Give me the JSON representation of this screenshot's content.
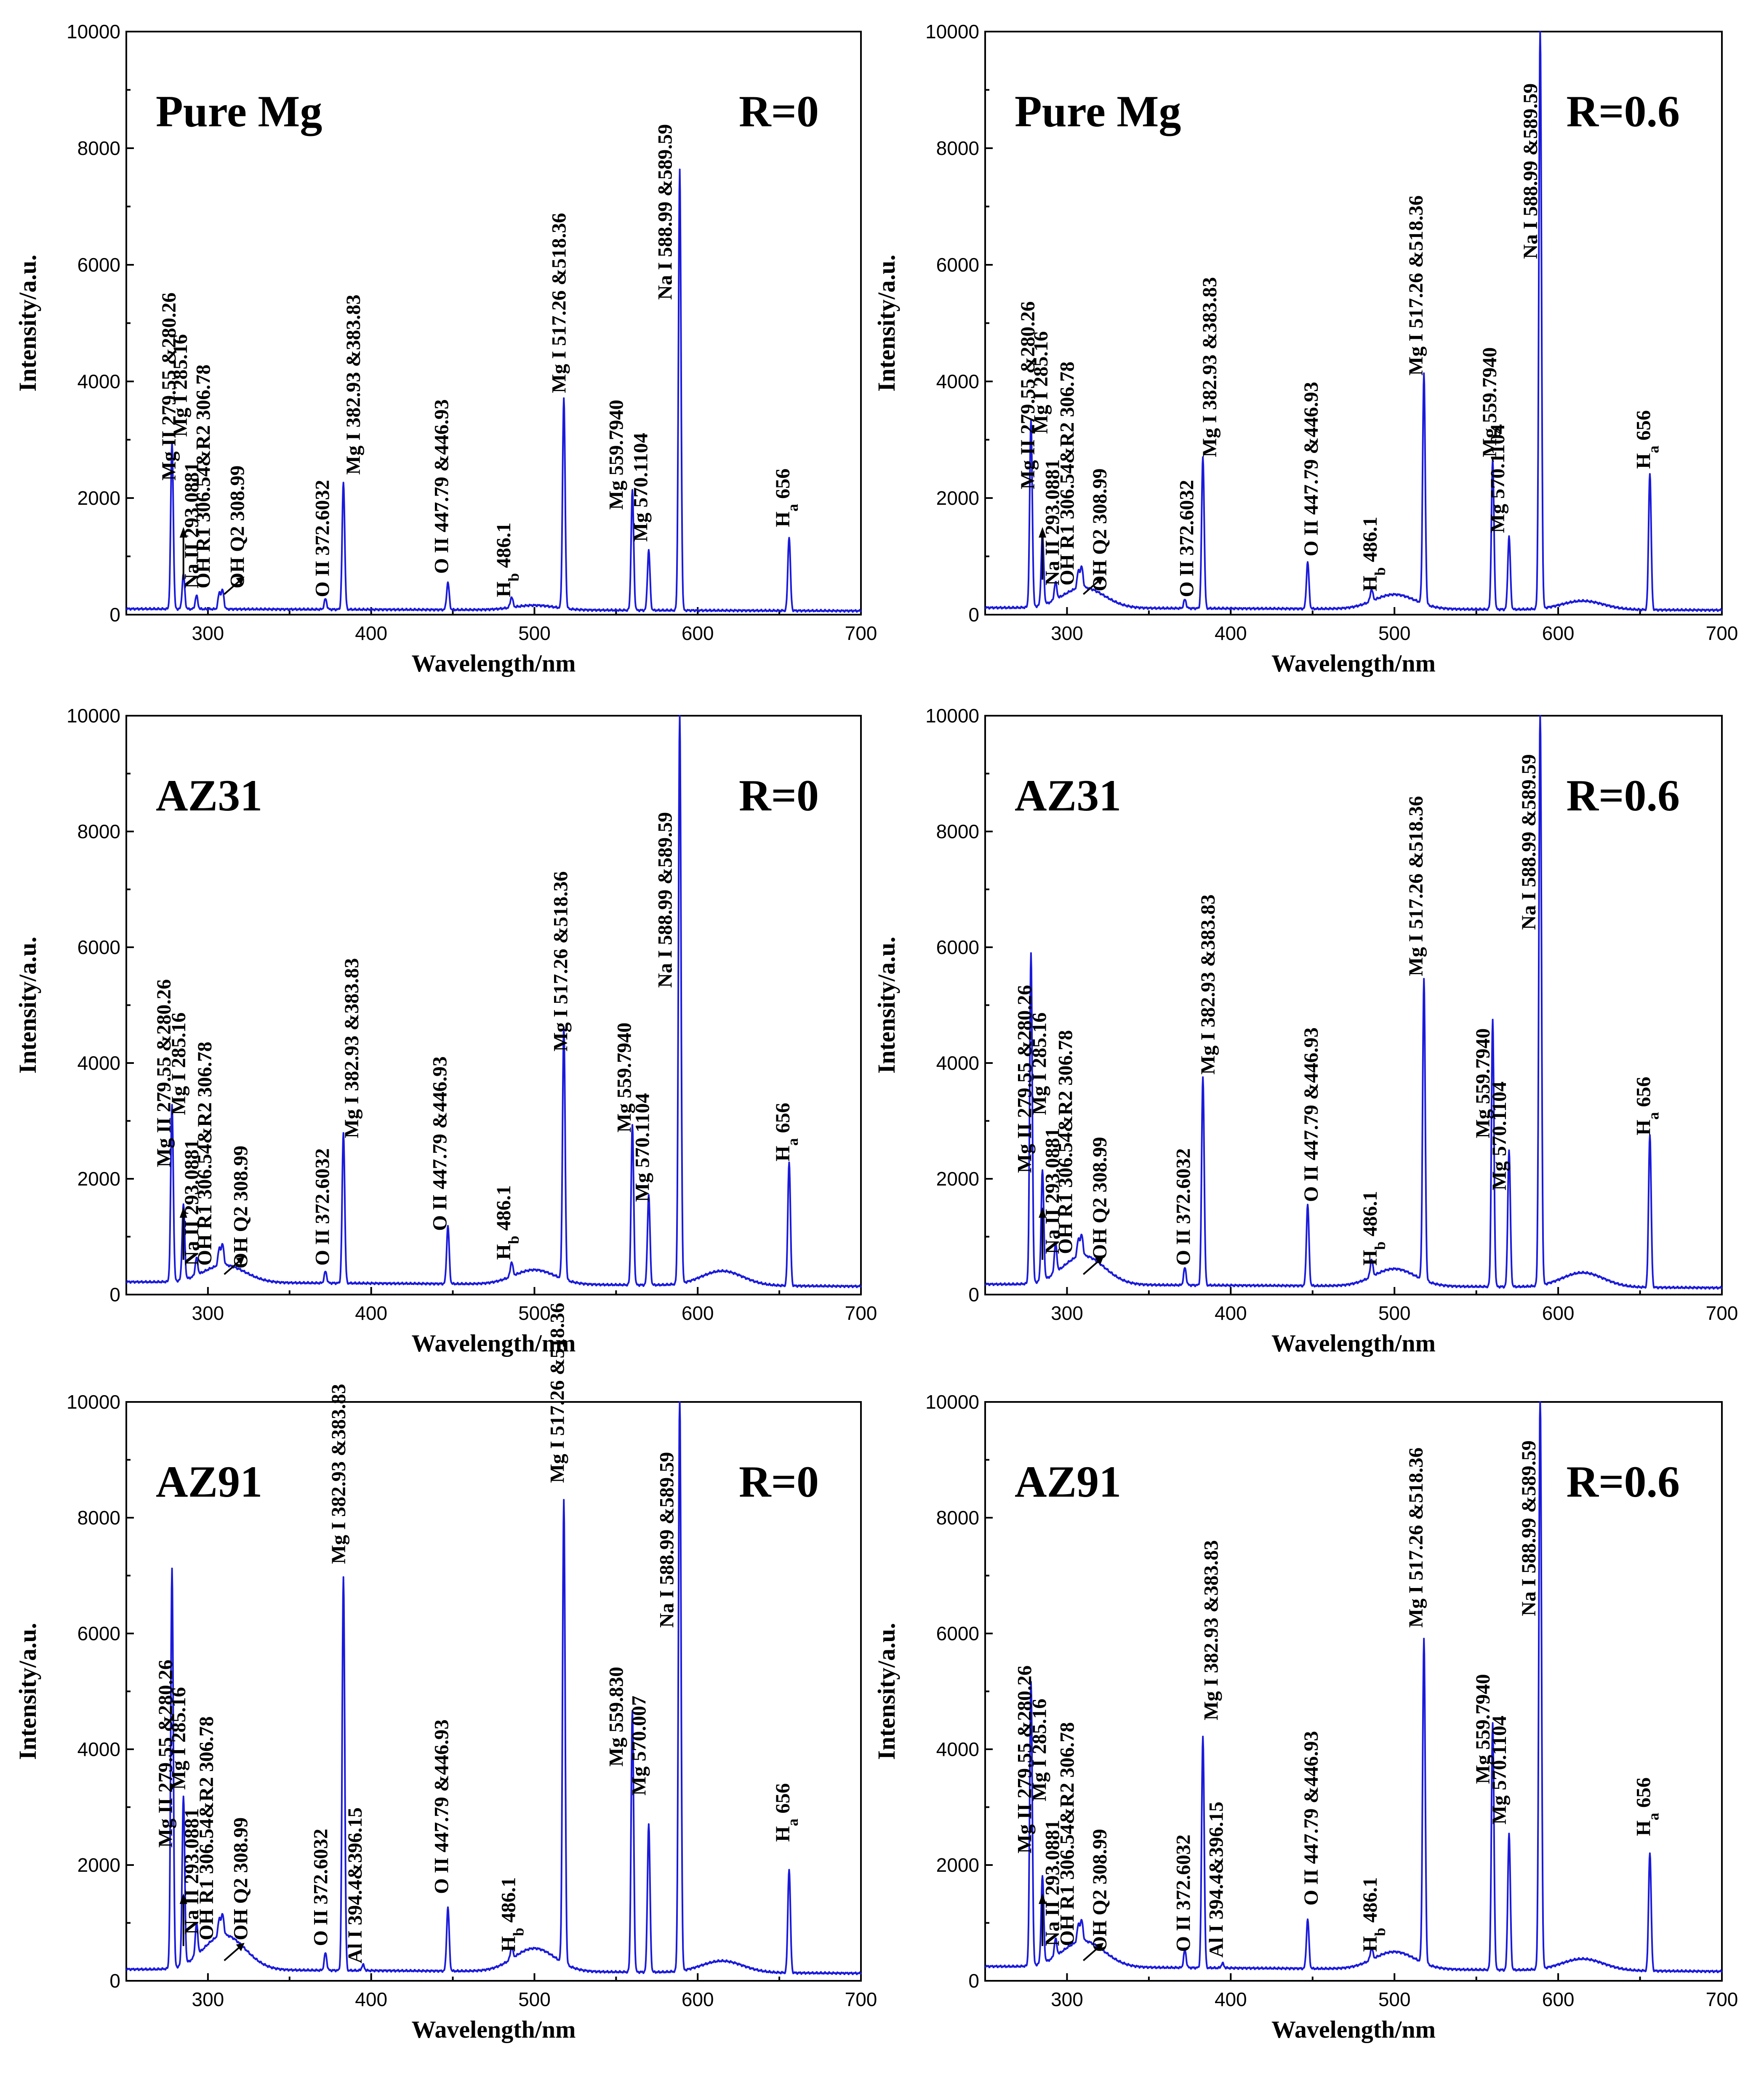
{
  "colors": {
    "spectrum": "#1a1adb",
    "axis": "#000000"
  },
  "chart_data": [
    {
      "type": "line",
      "title": "Pure Mg",
      "condition": "R=0",
      "xlabel": "Wavelength/nm",
      "ylabel": "Intensity/a.u.",
      "xlim": [
        250,
        700
      ],
      "ylim": [
        0,
        10000
      ],
      "xticks": [
        "300",
        "400",
        "500",
        "600",
        "700"
      ],
      "yticks": [
        "0",
        "2000",
        "4000",
        "6000",
        "8000",
        "10000"
      ],
      "baseline": 100,
      "broad_bumps": [
        {
          "x": 500,
          "y": 80
        }
      ],
      "peaks": [
        {
          "x": 278,
          "y": 2850
        },
        {
          "x": 285,
          "y": 600
        },
        {
          "x": 293,
          "y": 230
        },
        {
          "x": 307,
          "y": 280
        },
        {
          "x": 309,
          "y": 320
        },
        {
          "x": 372,
          "y": 180
        },
        {
          "x": 383,
          "y": 2180
        },
        {
          "x": 447,
          "y": 470
        },
        {
          "x": 486,
          "y": 180
        },
        {
          "x": 518,
          "y": 3600
        },
        {
          "x": 560,
          "y": 2050
        },
        {
          "x": 570,
          "y": 1030
        },
        {
          "x": 589,
          "y": 7550
        },
        {
          "x": 656,
          "y": 1270
        }
      ],
      "labels": [
        {
          "text": "Mg II  279.55 &280.26",
          "x": 276,
          "y": 2300
        },
        {
          "text": "Mg I 285.16",
          "x": 283,
          "y": 3050
        },
        {
          "text": "Na II 293.0881",
          "x": 290,
          "y": 450
        },
        {
          "text": "OH  R1 306.54&R2 306.78",
          "x": 297,
          "y": 450
        },
        {
          "text": "OH  Q2 308.99",
          "x": 318,
          "y": 450
        },
        {
          "text": "O II 372.6032",
          "x": 370,
          "y": 300
        },
        {
          "text": "Mg I  382.93 &383.83",
          "x": 389,
          "y": 2400
        },
        {
          "text": "O II  447.79 &446.93",
          "x": 443,
          "y": 700
        },
        {
          "text": "Hb  486.1",
          "x": 481,
          "y": 300
        },
        {
          "text": "Mg I 517.26 &518.36",
          "x": 515,
          "y": 3800
        },
        {
          "text": "Mg  559.7940",
          "x": 550,
          "y": 1800
        },
        {
          "text": "Mg  570.1104",
          "x": 565,
          "y": 1250
        },
        {
          "text": "Na I  588.99 &589.59",
          "x": 580,
          "y": 5400
        },
        {
          "text": "Ha  656",
          "x": 652,
          "y": 1500
        }
      ]
    },
    {
      "type": "line",
      "title": "Pure Mg",
      "condition": "R=0.6",
      "xlabel": "Wavelength/nm",
      "ylabel": "Intensity/a.u.",
      "xlim": [
        250,
        700
      ],
      "ylim": [
        0,
        10000
      ],
      "xticks": [
        "300",
        "400",
        "500",
        "600",
        "700"
      ],
      "yticks": [
        "0",
        "2000",
        "4000",
        "6000",
        "8000",
        "10000"
      ],
      "baseline": 120,
      "broad_bumps": [
        {
          "x": 310,
          "y": 350
        },
        {
          "x": 500,
          "y": 250
        },
        {
          "x": 615,
          "y": 150
        }
      ],
      "peaks": [
        {
          "x": 278,
          "y": 3200
        },
        {
          "x": 285,
          "y": 1200
        },
        {
          "x": 293,
          "y": 300
        },
        {
          "x": 307,
          "y": 300
        },
        {
          "x": 309,
          "y": 350
        },
        {
          "x": 372,
          "y": 150
        },
        {
          "x": 383,
          "y": 2600
        },
        {
          "x": 447,
          "y": 800
        },
        {
          "x": 486,
          "y": 200
        },
        {
          "x": 518,
          "y": 3950
        },
        {
          "x": 560,
          "y": 2550
        },
        {
          "x": 570,
          "y": 1250
        },
        {
          "x": 589,
          "y": 10000
        },
        {
          "x": 656,
          "y": 2350
        }
      ],
      "labels": [
        {
          "text": "Mg II  279.55 &280.26",
          "x": 276,
          "y": 2150
        },
        {
          "text": "Mg I 285.16",
          "x": 284,
          "y": 3100
        },
        {
          "text": "Na II 293.0881",
          "x": 291,
          "y": 500
        },
        {
          "text": "OH  R1 306.54&R2 306.78",
          "x": 300,
          "y": 500
        },
        {
          "text": "OH  Q2 308.99",
          "x": 320,
          "y": 400
        },
        {
          "text": "O II 372.6032",
          "x": 373,
          "y": 300
        },
        {
          "text": "Mg I  382.93 &383.83",
          "x": 387,
          "y": 2700
        },
        {
          "text": "O II  447.79 &446.93",
          "x": 449,
          "y": 1000
        },
        {
          "text": "Hb  486.1",
          "x": 485,
          "y": 400
        },
        {
          "text": "Mg I  517.26 &518.36",
          "x": 513,
          "y": 4100
        },
        {
          "text": "Mg  559.7940",
          "x": 558,
          "y": 2700
        },
        {
          "text": "Mg  570.1104",
          "x": 563,
          "y": 1400
        },
        {
          "text": "Na I  588.99 &589.59",
          "x": 583,
          "y": 6100
        },
        {
          "text": "Ha  656",
          "x": 652,
          "y": 2500
        }
      ]
    },
    {
      "type": "line",
      "title": "AZ31",
      "condition": "R=0",
      "xlabel": "Wavelength/nm",
      "ylabel": "Intensity/a.u.",
      "xlim": [
        250,
        700
      ],
      "ylim": [
        0,
        10000
      ],
      "xticks": [
        "300",
        "400",
        "500",
        "600",
        "700"
      ],
      "yticks": [
        "0",
        "2000",
        "4000",
        "6000",
        "8000",
        "10000"
      ],
      "baseline": 220,
      "broad_bumps": [
        {
          "x": 310,
          "y": 300
        },
        {
          "x": 500,
          "y": 250
        },
        {
          "x": 615,
          "y": 250
        }
      ],
      "peaks": [
        {
          "x": 278,
          "y": 3050
        },
        {
          "x": 285,
          "y": 1300
        },
        {
          "x": 293,
          "y": 300
        },
        {
          "x": 307,
          "y": 300
        },
        {
          "x": 309,
          "y": 350
        },
        {
          "x": 372,
          "y": 200
        },
        {
          "x": 383,
          "y": 2600
        },
        {
          "x": 447,
          "y": 1000
        },
        {
          "x": 486,
          "y": 250
        },
        {
          "x": 518,
          "y": 4350
        },
        {
          "x": 560,
          "y": 2750
        },
        {
          "x": 570,
          "y": 1550
        },
        {
          "x": 589,
          "y": 9850
        },
        {
          "x": 656,
          "y": 2150
        }
      ],
      "labels": [
        {
          "text": "Mg II  279.55 &280.26",
          "x": 273,
          "y": 2200
        },
        {
          "text": "Mg I  285.16",
          "x": 282,
          "y": 3100
        },
        {
          "text": "Na II  293.0881",
          "x": 290,
          "y": 500
        },
        {
          "text": "OH  R1 306.54&R2 306.78",
          "x": 298,
          "y": 500
        },
        {
          "text": "OH  Q2 308.99",
          "x": 320,
          "y": 450
        },
        {
          "text": "O II 372.6032",
          "x": 370,
          "y": 500
        },
        {
          "text": "Mg I  382.93 &383.83",
          "x": 388,
          "y": 2700
        },
        {
          "text": "O II  447.79 &446.93",
          "x": 442,
          "y": 1100
        },
        {
          "text": "Hb  486.1",
          "x": 481,
          "y": 600
        },
        {
          "text": "Mg I  517.26 &518.36",
          "x": 516,
          "y": 4200
        },
        {
          "text": "Mg 559.7940",
          "x": 555,
          "y": 2800
        },
        {
          "text": "Mg 570.1104",
          "x": 566,
          "y": 1600
        },
        {
          "text": "Na I  588.99 &589.59",
          "x": 580,
          "y": 5300
        },
        {
          "text": "Ha  656",
          "x": 652,
          "y": 2300
        }
      ]
    },
    {
      "type": "line",
      "title": "AZ31",
      "condition": "R=0.6",
      "xlabel": "Wavelength/nm",
      "ylabel": "Intensity/a.u.",
      "xlim": [
        250,
        700
      ],
      "ylim": [
        0,
        10000
      ],
      "xticks": [
        "300",
        "400",
        "500",
        "600",
        "700"
      ],
      "yticks": [
        "0",
        "2000",
        "4000",
        "6000",
        "8000",
        "10000"
      ],
      "baseline": 180,
      "broad_bumps": [
        {
          "x": 310,
          "y": 500
        },
        {
          "x": 500,
          "y": 300
        },
        {
          "x": 615,
          "y": 250
        }
      ],
      "peaks": [
        {
          "x": 278,
          "y": 5700
        },
        {
          "x": 285,
          "y": 1900
        },
        {
          "x": 293,
          "y": 500
        },
        {
          "x": 307,
          "y": 300
        },
        {
          "x": 309,
          "y": 350
        },
        {
          "x": 372,
          "y": 300
        },
        {
          "x": 383,
          "y": 3600
        },
        {
          "x": 447,
          "y": 1400
        },
        {
          "x": 486,
          "y": 300
        },
        {
          "x": 518,
          "y": 5200
        },
        {
          "x": 560,
          "y": 4600
        },
        {
          "x": 570,
          "y": 2350
        },
        {
          "x": 589,
          "y": 10000
        },
        {
          "x": 656,
          "y": 2650
        }
      ],
      "labels": [
        {
          "text": "Mg II  279.55 &280.26",
          "x": 274,
          "y": 2100
        },
        {
          "text": "Mg I 285.16",
          "x": 283,
          "y": 3100
        },
        {
          "text": "Na II 293.0881",
          "x": 291,
          "y": 700
        },
        {
          "text": "OH  R1 306.54&R2 306.78",
          "x": 299,
          "y": 700
        },
        {
          "text": "OH  Q2 308.99",
          "x": 320,
          "y": 600
        },
        {
          "text": "O II 372.6032",
          "x": 371,
          "y": 500
        },
        {
          "text": "Mg I  382.93 &383.83",
          "x": 386,
          "y": 3800
        },
        {
          "text": "O II  447.79 &446.93",
          "x": 449,
          "y": 1600
        },
        {
          "text": "Hb  486.1",
          "x": 485,
          "y": 500
        },
        {
          "text": "Mg I  517.26 &518.36",
          "x": 513,
          "y": 5500
        },
        {
          "text": "Mg  559.7940",
          "x": 554,
          "y": 2700
        },
        {
          "text": "Mg  570.1104",
          "x": 564,
          "y": 1800
        },
        {
          "text": "Na I  588.99 &589.59",
          "x": 582,
          "y": 6300
        },
        {
          "text": "Ha  656",
          "x": 652,
          "y": 2750
        }
      ]
    },
    {
      "type": "line",
      "title": "AZ91",
      "condition": "R=0",
      "xlabel": "Wavelength/nm",
      "ylabel": "Intensity/a.u.",
      "xlim": [
        250,
        700
      ],
      "ylim": [
        0,
        10000
      ],
      "xticks": [
        "300",
        "400",
        "500",
        "600",
        "700"
      ],
      "yticks": [
        "0",
        "2000",
        "4000",
        "6000",
        "8000",
        "10000"
      ],
      "baseline": 200,
      "broad_bumps": [
        {
          "x": 310,
          "y": 600
        },
        {
          "x": 500,
          "y": 400
        },
        {
          "x": 615,
          "y": 200
        }
      ],
      "peaks": [
        {
          "x": 278,
          "y": 6900
        },
        {
          "x": 285,
          "y": 2900
        },
        {
          "x": 293,
          "y": 550
        },
        {
          "x": 307,
          "y": 300
        },
        {
          "x": 309,
          "y": 350
        },
        {
          "x": 372,
          "y": 300
        },
        {
          "x": 383,
          "y": 6800
        },
        {
          "x": 395,
          "y": 100
        },
        {
          "x": 447,
          "y": 1100
        },
        {
          "x": 486,
          "y": 200
        },
        {
          "x": 518,
          "y": 8000
        },
        {
          "x": 560,
          "y": 4500
        },
        {
          "x": 570,
          "y": 2550
        },
        {
          "x": 589,
          "y": 10000
        },
        {
          "x": 656,
          "y": 1800
        }
      ],
      "labels": [
        {
          "text": "Mg II 279.55 &280.26",
          "x": 274,
          "y": 2300
        },
        {
          "text": "Mg I  285.16",
          "x": 282,
          "y": 3300
        },
        {
          "text": "Na II  293.0881",
          "x": 290,
          "y": 800
        },
        {
          "text": "OH  R1 306.54&R2 306.78",
          "x": 299,
          "y": 700
        },
        {
          "text": "OH  Q2 308.99",
          "x": 320,
          "y": 700
        },
        {
          "text": "O II  372.6032",
          "x": 369,
          "y": 600
        },
        {
          "text": "Mg I  382.93 &383.83",
          "x": 380,
          "y": 7200
        },
        {
          "text": "Al I  394.4&396.15",
          "x": 390,
          "y": 300
        },
        {
          "text": "O II  447.79 &446.93",
          "x": 443,
          "y": 1500
        },
        {
          "text": "Hb  486.1",
          "x": 484,
          "y": 500
        },
        {
          "text": "Mg I 517.26 &518.36",
          "x": 514,
          "y": 8600
        },
        {
          "text": "Mg 559.830",
          "x": 550,
          "y": 3700
        },
        {
          "text": "Mg 570.007",
          "x": 564,
          "y": 3200
        },
        {
          "text": "Na I  588.99 &589.59",
          "x": 581,
          "y": 6100
        },
        {
          "text": "Ha  656",
          "x": 652,
          "y": 2400
        }
      ]
    },
    {
      "type": "line",
      "title": "AZ91",
      "condition": "R=0.6",
      "xlabel": "Wavelength/nm",
      "ylabel": "Intensity/a.u.",
      "xlim": [
        250,
        700
      ],
      "ylim": [
        0,
        10000
      ],
      "xticks": [
        "300",
        "400",
        "500",
        "600",
        "700"
      ],
      "yticks": [
        "0",
        "2000",
        "4000",
        "6000",
        "8000",
        "10000"
      ],
      "baseline": 250,
      "broad_bumps": [
        {
          "x": 310,
          "y": 450
        },
        {
          "x": 500,
          "y": 300
        },
        {
          "x": 615,
          "y": 200
        }
      ],
      "peaks": [
        {
          "x": 278,
          "y": 4900
        },
        {
          "x": 285,
          "y": 1500
        },
        {
          "x": 293,
          "y": 300
        },
        {
          "x": 307,
          "y": 300
        },
        {
          "x": 309,
          "y": 350
        },
        {
          "x": 372,
          "y": 300
        },
        {
          "x": 383,
          "y": 4000
        },
        {
          "x": 395,
          "y": 80
        },
        {
          "x": 447,
          "y": 850
        },
        {
          "x": 486,
          "y": 200
        },
        {
          "x": 518,
          "y": 5600
        },
        {
          "x": 560,
          "y": 4250
        },
        {
          "x": 570,
          "y": 2350
        },
        {
          "x": 589,
          "y": 10000
        },
        {
          "x": 656,
          "y": 2050
        }
      ],
      "labels": [
        {
          "text": "Mg II  279.55 &280.26",
          "x": 274,
          "y": 2200
        },
        {
          "text": "Mg I 285.16",
          "x": 283,
          "y": 3100
        },
        {
          "text": "Na II 293.0881",
          "x": 291,
          "y": 600
        },
        {
          "text": "OH  R1 306.54&R2 306.78",
          "x": 300,
          "y": 600
        },
        {
          "text": "OH  Q2 308.99",
          "x": 320,
          "y": 500
        },
        {
          "text": "O II  372.6032",
          "x": 371,
          "y": 500
        },
        {
          "text": "Mg I 382.93 &383.83",
          "x": 388,
          "y": 4500
        },
        {
          "text": "Al I 394.4&396.15",
          "x": 391,
          "y": 400
        },
        {
          "text": "O II  447.79 &446.93",
          "x": 449,
          "y": 1300
        },
        {
          "text": "Hb  486.1",
          "x": 485,
          "y": 500
        },
        {
          "text": "Mg I  517.26 &518.36",
          "x": 513,
          "y": 6100
        },
        {
          "text": "Mg 559.7940",
          "x": 554,
          "y": 3400
        },
        {
          "text": "Mg 570.1104",
          "x": 564,
          "y": 2700
        },
        {
          "text": "Na I  588.99 &589.59",
          "x": 582,
          "y": 6300
        },
        {
          "text": "Ha  656",
          "x": 652,
          "y": 2500
        }
      ]
    }
  ]
}
